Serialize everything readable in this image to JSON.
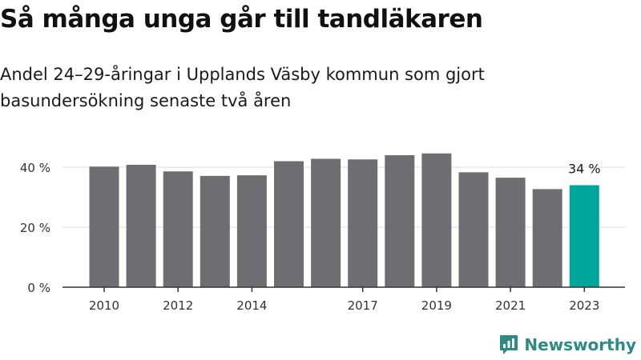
{
  "title": "Så många unga går till tandläkaren",
  "subtitle": "Andel 24–29-åringar i Upplands Väsby kommun som gjort basundersökning senaste två åren",
  "brand": {
    "name": "Newsworthy",
    "icon": "bar-chart-speech-bubble-icon",
    "color": "#2e8b84"
  },
  "chart_data": {
    "type": "bar",
    "categories": [
      "2010",
      "2011",
      "2012",
      "2013",
      "2014",
      "2015",
      "2016",
      "2017",
      "2018",
      "2019",
      "2020",
      "2021",
      "2022",
      "2023"
    ],
    "values": [
      40.2,
      40.8,
      38.6,
      37.1,
      37.3,
      42.0,
      42.8,
      42.6,
      44.0,
      44.6,
      38.3,
      36.5,
      32.7,
      34.0
    ],
    "ylim": [
      0,
      50
    ],
    "yticks": [
      0,
      20,
      40
    ],
    "ytick_labels": [
      "0 %",
      "20 %",
      "40 %"
    ],
    "xtick_labels": [
      "2010",
      "2012",
      "2014",
      "2017",
      "2019",
      "2021",
      "2023"
    ],
    "grid": true,
    "bar_color": "#6e6d72",
    "highlight_color": "#00a69b",
    "highlight_category": "2023",
    "highlight_label": "34 %"
  }
}
